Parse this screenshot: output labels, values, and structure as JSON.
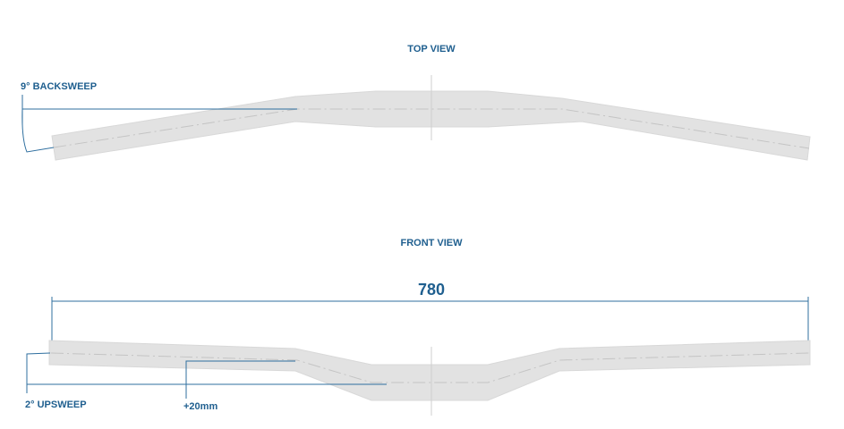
{
  "top_view": {
    "title": "TOP VIEW",
    "annotation": "9° BACKSWEEP"
  },
  "front_view": {
    "title": "FRONT VIEW",
    "width_dimension": "780",
    "upsweep": "2° UPSWEEP",
    "rise": "+20mm"
  }
}
